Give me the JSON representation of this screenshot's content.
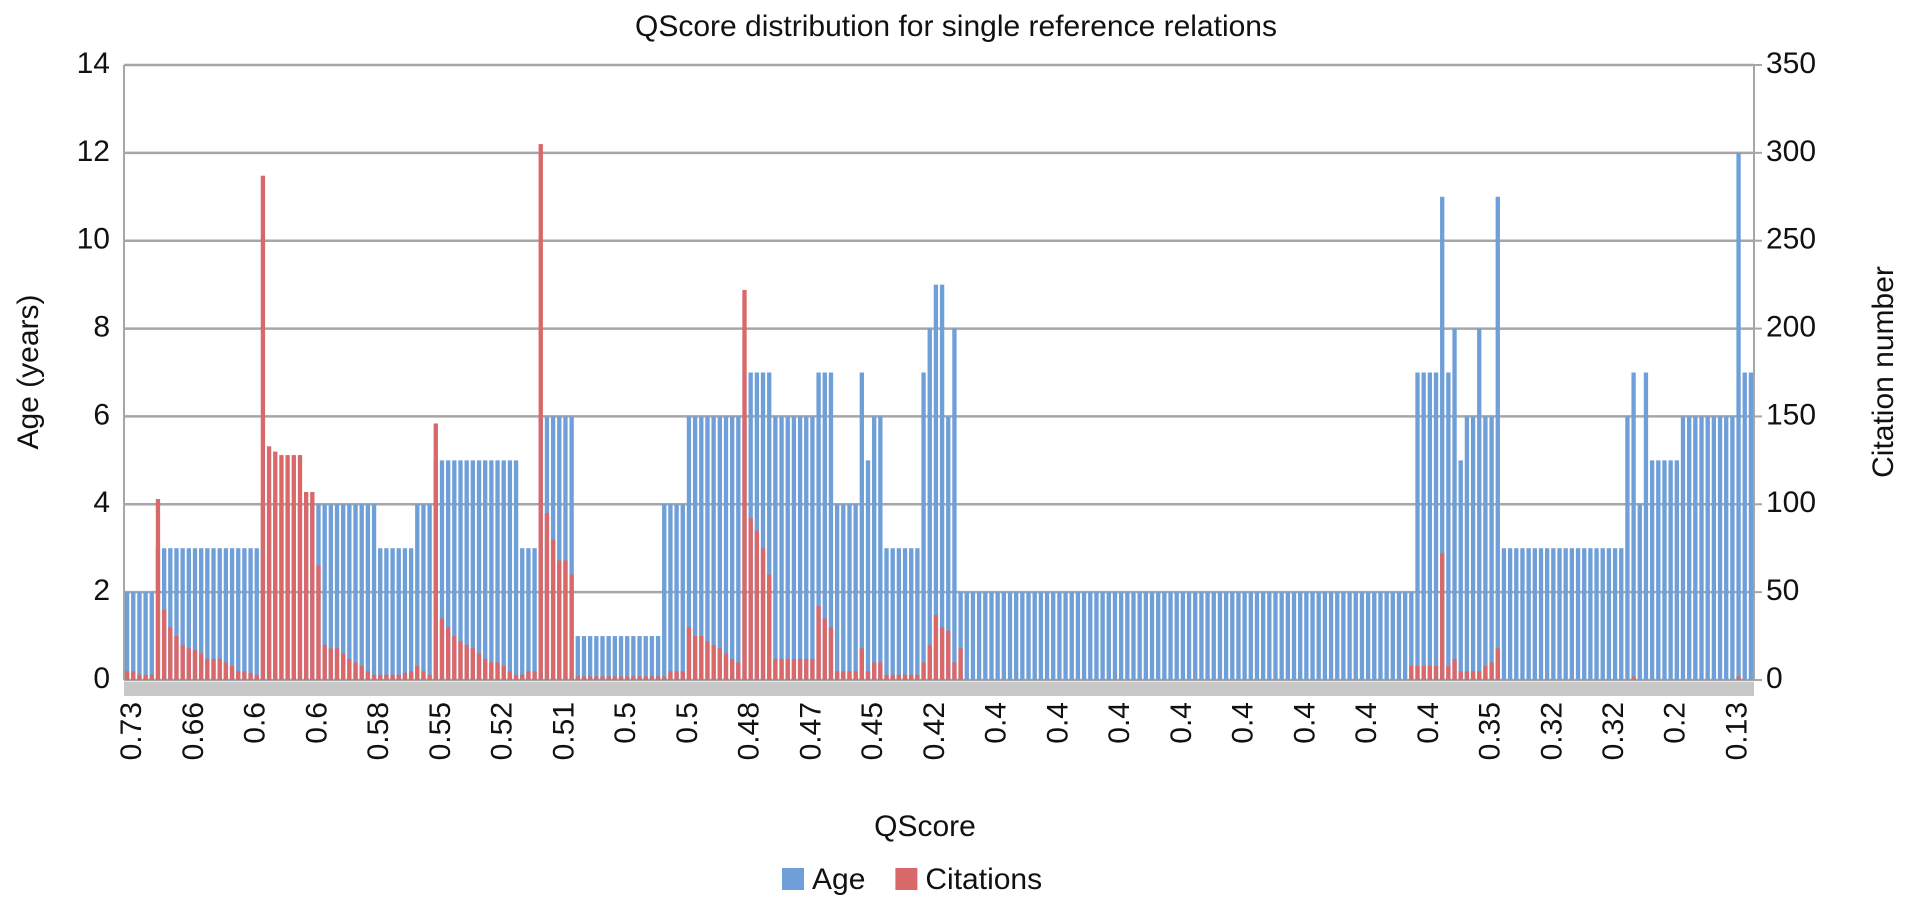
{
  "chart_data": {
    "type": "bar",
    "title": "QScore distribution for single reference relations",
    "x_label": "QScore",
    "y_label": "Age (years)",
    "y2_label": "Citation number",
    "categories": [
      null,
      "0.73",
      null,
      null,
      null,
      null,
      null,
      null,
      null,
      null,
      null,
      "0.66",
      null,
      null,
      null,
      null,
      null,
      null,
      null,
      null,
      null,
      "0.6",
      null,
      null,
      null,
      null,
      null,
      null,
      null,
      null,
      null,
      "0.6",
      null,
      null,
      null,
      null,
      null,
      null,
      null,
      null,
      null,
      "0.58",
      null,
      null,
      null,
      null,
      null,
      null,
      null,
      null,
      null,
      "0.55",
      null,
      null,
      null,
      null,
      null,
      null,
      null,
      null,
      null,
      "0.52",
      null,
      null,
      null,
      null,
      null,
      null,
      null,
      null,
      null,
      "0.51",
      null,
      null,
      null,
      null,
      null,
      null,
      null,
      null,
      null,
      "0.5",
      null,
      null,
      null,
      null,
      null,
      null,
      null,
      null,
      null,
      "0.5",
      null,
      null,
      null,
      null,
      null,
      null,
      null,
      null,
      null,
      "0.48",
      null,
      null,
      null,
      null,
      null,
      null,
      null,
      null,
      null,
      "0.47",
      null,
      null,
      null,
      null,
      null,
      null,
      null,
      null,
      null,
      "0.45",
      null,
      null,
      null,
      null,
      null,
      null,
      null,
      null,
      null,
      "0.42",
      null,
      null,
      null,
      null,
      null,
      null,
      null,
      null,
      null,
      "0.4",
      null,
      null,
      null,
      null,
      null,
      null,
      null,
      null,
      null,
      "0.4",
      null,
      null,
      null,
      null,
      null,
      null,
      null,
      null,
      null,
      "0.4",
      null,
      null,
      null,
      null,
      null,
      null,
      null,
      null,
      null,
      "0.4",
      null,
      null,
      null,
      null,
      null,
      null,
      null,
      null,
      null,
      "0.4",
      null,
      null,
      null,
      null,
      null,
      null,
      null,
      null,
      null,
      "0.4",
      null,
      null,
      null,
      null,
      null,
      null,
      null,
      null,
      null,
      "0.4",
      null,
      null,
      null,
      null,
      null,
      null,
      null,
      null,
      null,
      "0.4",
      null,
      null,
      null,
      null,
      null,
      null,
      null,
      null,
      null,
      "0.35",
      null,
      null,
      null,
      null,
      null,
      null,
      null,
      null,
      null,
      "0.32",
      null,
      null,
      null,
      null,
      null,
      null,
      null,
      null,
      null,
      "0.32",
      null,
      null,
      null,
      null,
      null,
      null,
      null,
      null,
      null,
      "0.2",
      null,
      null,
      null,
      null,
      null,
      null,
      null,
      null,
      null,
      "0.13",
      null,
      null
    ],
    "series": [
      {
        "name": "Age",
        "color": "#6f9fd8",
        "values": [
          2,
          2,
          2,
          2,
          2,
          3,
          3,
          3,
          3,
          3,
          3,
          3,
          3,
          3,
          3,
          3,
          3,
          3,
          3,
          3,
          3,
          3,
          4,
          4,
          4,
          4,
          4,
          4,
          4,
          4,
          4,
          4,
          4,
          4,
          4,
          4,
          4,
          4,
          4,
          4,
          4,
          3,
          3,
          3,
          3,
          3,
          3,
          4,
          4,
          4,
          5,
          5,
          5,
          5,
          5,
          5,
          5,
          5,
          5,
          5,
          5,
          5,
          5,
          5,
          3,
          3,
          3,
          6,
          6,
          6,
          6,
          6,
          6,
          1,
          1,
          1,
          1,
          1,
          1,
          1,
          1,
          1,
          1,
          1,
          1,
          1,
          1,
          4,
          4,
          4,
          4,
          6,
          6,
          6,
          6,
          6,
          6,
          6,
          6,
          6,
          6,
          7,
          7,
          7,
          7,
          6,
          6,
          6,
          6,
          6,
          6,
          6,
          7,
          7,
          7,
          4,
          4,
          4,
          4,
          7,
          5,
          6,
          6,
          3,
          3,
          3,
          3,
          3,
          3,
          7,
          8,
          9,
          9,
          6,
          8,
          2,
          2,
          2,
          2,
          2,
          2,
          2,
          2,
          2,
          2,
          2,
          2,
          2,
          2,
          2,
          2,
          2,
          2,
          2,
          2,
          2,
          2,
          2,
          2,
          2,
          2,
          2,
          2,
          2,
          2,
          2,
          2,
          2,
          2,
          2,
          2,
          2,
          2,
          2,
          2,
          2,
          2,
          2,
          2,
          2,
          2,
          2,
          2,
          2,
          2,
          2,
          2,
          2,
          2,
          2,
          2,
          2,
          2,
          2,
          2,
          2,
          2,
          2,
          2,
          2,
          2,
          2,
          2,
          2,
          2,
          2,
          2,
          2,
          2,
          7,
          7,
          7,
          7,
          11,
          7,
          8,
          5,
          6,
          6,
          8,
          6,
          6,
          11,
          3,
          3,
          3,
          3,
          3,
          3,
          3,
          3,
          3,
          3,
          3,
          3,
          3,
          3,
          3,
          3,
          3,
          3,
          3,
          3,
          6,
          7,
          4,
          7,
          5,
          5,
          5,
          5,
          5,
          6,
          6,
          6,
          6,
          6,
          6,
          6,
          6,
          6,
          12,
          7,
          7
        ]
      },
      {
        "name": "Citations",
        "color": "#d9686a",
        "axis": "y2",
        "values": [
          5,
          5,
          3,
          3,
          3,
          103,
          40,
          30,
          25,
          20,
          18,
          17,
          15,
          12,
          12,
          12,
          10,
          8,
          5,
          5,
          4,
          3,
          287,
          133,
          130,
          128,
          128,
          128,
          128,
          107,
          107,
          65,
          20,
          18,
          18,
          15,
          12,
          10,
          8,
          5,
          3,
          3,
          3,
          3,
          3,
          4,
          5,
          8,
          5,
          3,
          146,
          35,
          30,
          25,
          22,
          20,
          18,
          15,
          12,
          10,
          10,
          8,
          5,
          3,
          3,
          5,
          5,
          305,
          95,
          80,
          68,
          68,
          60,
          2,
          2,
          2,
          2,
          2,
          2,
          2,
          2,
          2,
          2,
          2,
          2,
          2,
          2,
          2,
          5,
          5,
          5,
          30,
          25,
          25,
          22,
          20,
          18,
          15,
          12,
          10,
          222,
          92,
          85,
          75,
          60,
          12,
          12,
          12,
          12,
          12,
          12,
          12,
          42,
          35,
          30,
          5,
          5,
          5,
          5,
          18,
          5,
          10,
          10,
          3,
          3,
          3,
          3,
          3,
          3,
          10,
          20,
          37,
          30,
          28,
          10,
          18,
          0,
          0,
          0,
          0,
          0,
          0,
          0,
          0,
          0,
          0,
          0,
          0,
          0,
          0,
          0,
          0,
          0,
          0,
          0,
          0,
          0,
          0,
          0,
          0,
          0,
          0,
          0,
          0,
          0,
          0,
          0,
          0,
          0,
          0,
          0,
          0,
          0,
          0,
          0,
          0,
          0,
          0,
          0,
          0,
          0,
          0,
          0,
          0,
          0,
          0,
          0,
          0,
          0,
          0,
          0,
          0,
          0,
          0,
          0,
          0,
          0,
          0,
          0,
          0,
          0,
          0,
          0,
          0,
          0,
          0,
          0,
          0,
          8,
          8,
          8,
          8,
          8,
          72,
          8,
          12,
          5,
          5,
          5,
          5,
          8,
          10,
          18,
          0,
          0,
          0,
          0,
          0,
          0,
          0,
          0,
          0,
          0,
          0,
          0,
          0,
          0,
          0,
          0,
          0,
          0,
          0,
          0,
          0,
          2,
          0,
          0,
          0,
          0,
          0,
          0,
          0,
          0,
          0,
          0,
          0,
          0,
          0,
          0,
          0,
          0,
          2,
          0,
          0
        ]
      }
    ],
    "ylim": [
      0,
      14
    ],
    "yticks": [
      0,
      2,
      4,
      6,
      8,
      10,
      12,
      14
    ],
    "y2lim": [
      0,
      350
    ],
    "y2ticks": [
      0,
      50,
      100,
      150,
      200,
      250,
      300,
      350
    ],
    "grid": true,
    "legend": "bottom"
  }
}
